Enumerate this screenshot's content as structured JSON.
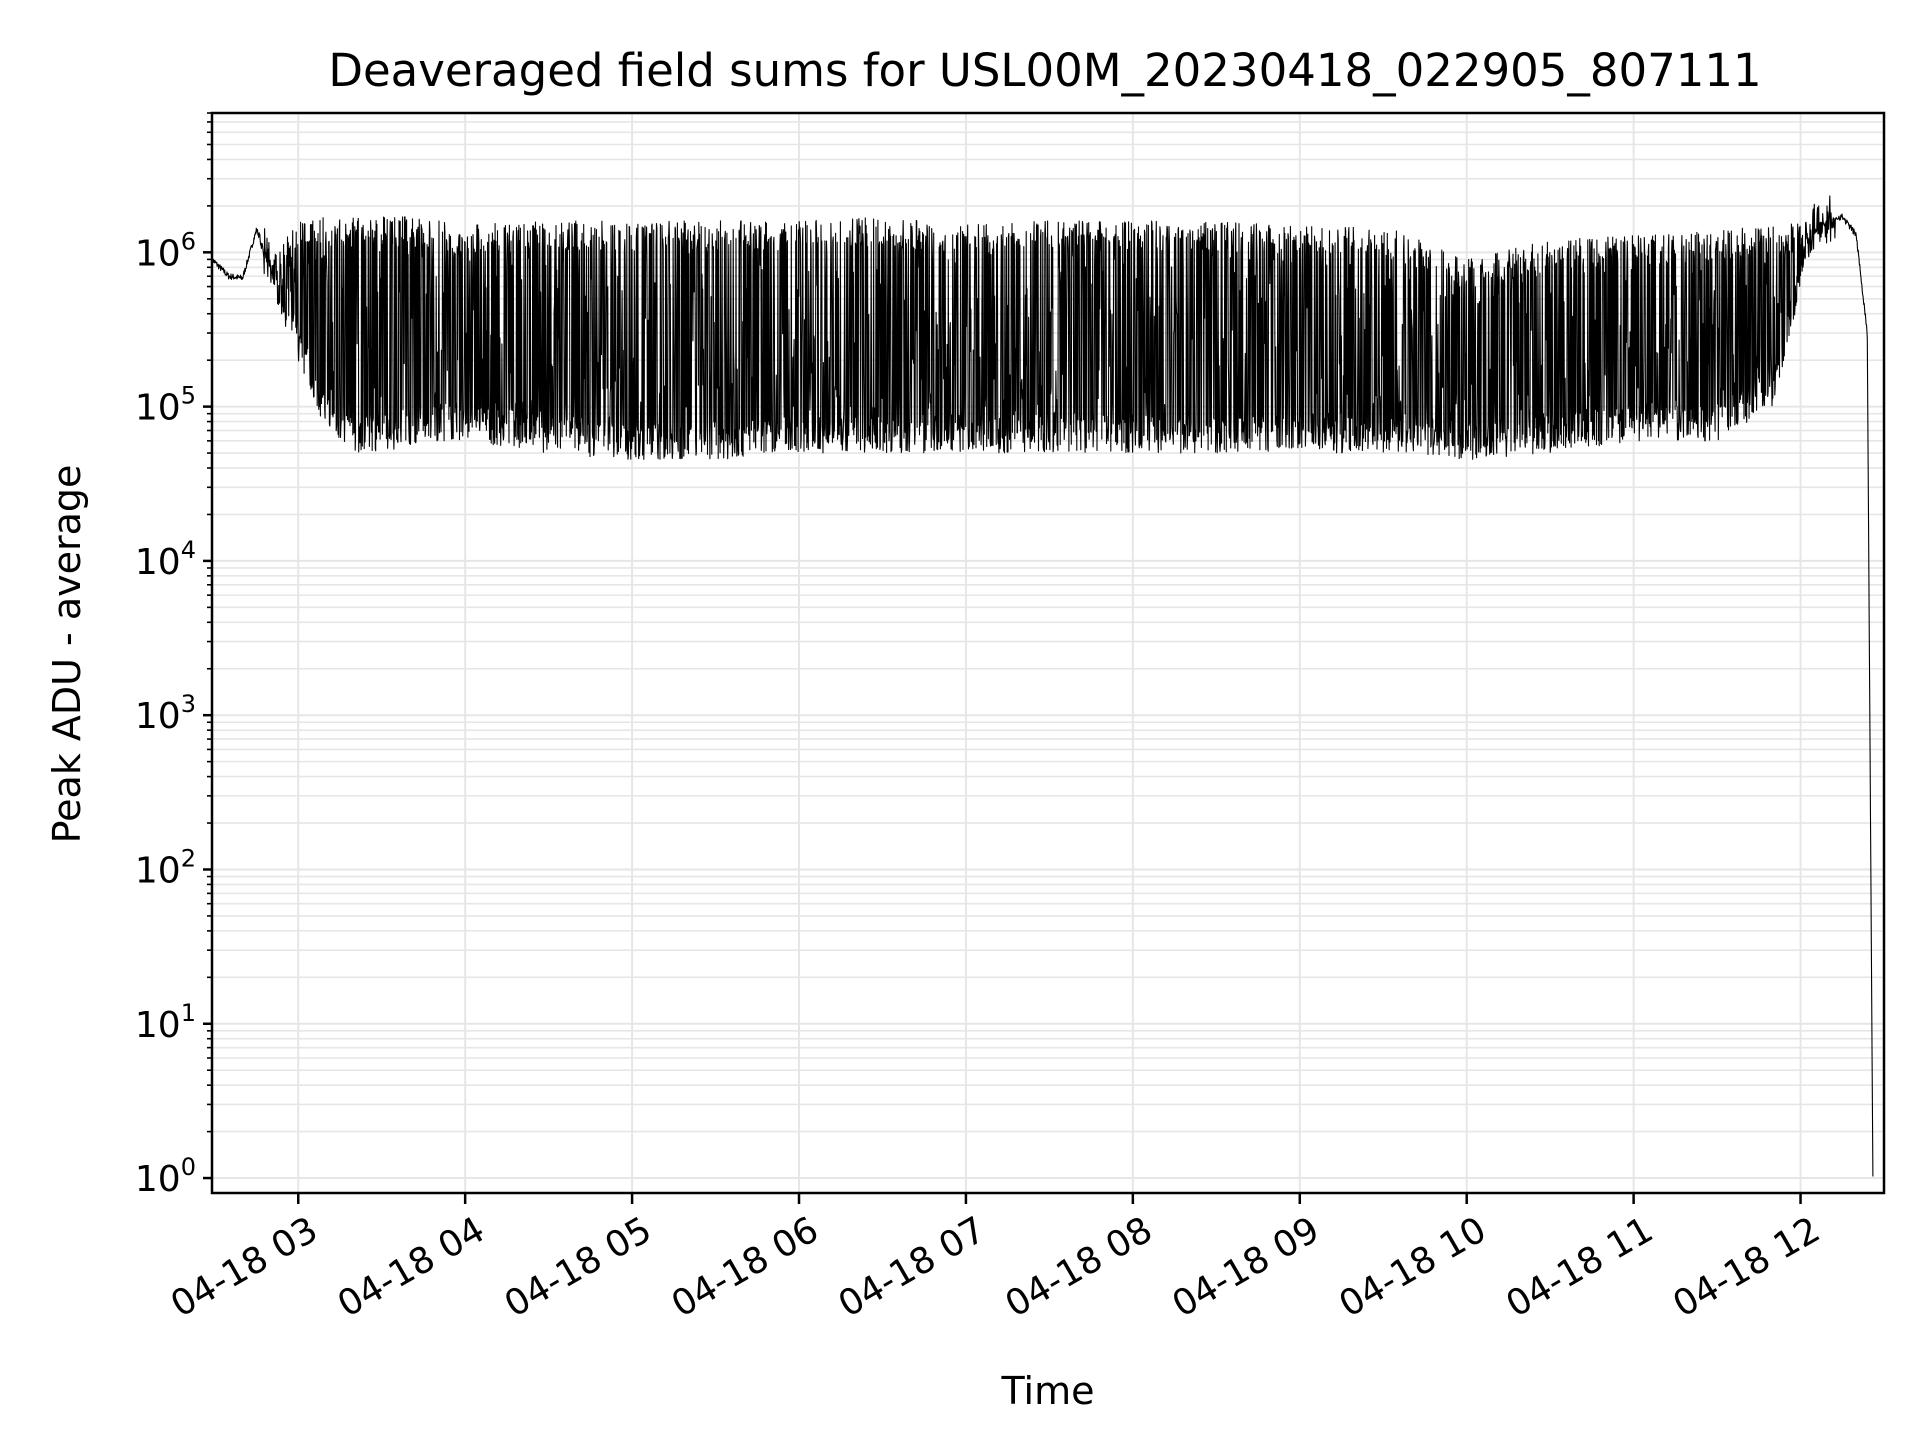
{
  "chart_data": {
    "type": "line",
    "title": "Deaveraged field sums for USL00M_20230418_022905_807111",
    "xlabel": "Time",
    "ylabel": "Peak ADU - average",
    "yscale": "log",
    "ylim": [
      1,
      8000000
    ],
    "xlim": [
      "04-18 02:29",
      "04-18 12:30"
    ],
    "grid": true,
    "line_color": "#000000",
    "grid_color": "#e6e6e6",
    "x_ticks": [
      "04-18 03",
      "04-18 04",
      "04-18 05",
      "04-18 06",
      "04-18 07",
      "04-18 08",
      "04-18 09",
      "04-18 10",
      "04-18 11",
      "04-18 12"
    ],
    "y_ticks": [
      {
        "value": 1,
        "base": "10",
        "exp": "0"
      },
      {
        "value": 10,
        "base": "10",
        "exp": "1"
      },
      {
        "value": 100,
        "base": "10",
        "exp": "2"
      },
      {
        "value": 1000,
        "base": "10",
        "exp": "3"
      },
      {
        "value": 10000,
        "base": "10",
        "exp": "4"
      },
      {
        "value": 100000,
        "base": "10",
        "exp": "5"
      },
      {
        "value": 1000000,
        "base": "10",
        "exp": "6"
      }
    ],
    "series": [
      {
        "note_envelope": "approximate upper/lower envelope of the dense oscillating signal",
        "x": [
          "04-18 02:29",
          "04-18 02:35",
          "04-18 02:40",
          "04-18 02:45",
          "04-18 02:50",
          "04-18 03:00",
          "04-18 03:10",
          "04-18 03:20",
          "04-18 03:30",
          "04-18 03:45",
          "04-18 04:00",
          "04-18 04:30",
          "04-18 05:00",
          "04-18 05:30",
          "04-18 06:00",
          "04-18 06:30",
          "04-18 07:00",
          "04-18 07:30",
          "04-18 08:00",
          "04-18 08:30",
          "04-18 09:00",
          "04-18 09:30",
          "04-18 10:00",
          "04-18 10:30",
          "04-18 11:00",
          "04-18 11:30",
          "04-18 11:50",
          "04-18 12:05",
          "04-18 12:15",
          "04-18 12:20",
          "04-18 12:24",
          "04-18 12:26"
        ],
        "upper": [
          900000,
          700000,
          680000,
          1400000,
          900000,
          1700000,
          1700000,
          1700000,
          1700000,
          1700000,
          1500000,
          1600000,
          1600000,
          1600000,
          1600000,
          1700000,
          1500000,
          1600000,
          1600000,
          1600000,
          1500000,
          1500000,
          900000,
          1200000,
          1300000,
          1400000,
          1500000,
          1600000,
          1700000,
          1300000,
          300000,
          1
        ],
        "lower": [
          900000,
          700000,
          680000,
          1400000,
          600000,
          200000,
          70000,
          50000,
          50000,
          60000,
          60000,
          50000,
          45000,
          45000,
          50000,
          50000,
          50000,
          50000,
          50000,
          50000,
          50000,
          50000,
          45000,
          50000,
          60000,
          60000,
          100000,
          1200000,
          1600000,
          1300000,
          300000,
          1
        ]
      }
    ]
  }
}
